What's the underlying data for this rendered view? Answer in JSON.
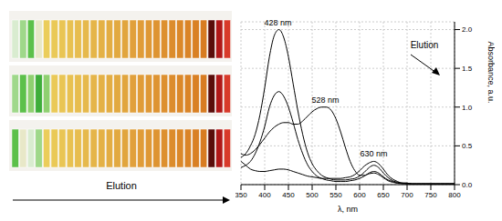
{
  "photo": {
    "label": "Elution"
  },
  "chart_data": {
    "type": "line",
    "x_label": "λ, nm",
    "y_label": "Absorbance, a.u.",
    "z_label": "Elution",
    "grid": true,
    "x": [
      350,
      360,
      370,
      380,
      390,
      400,
      410,
      420,
      430,
      440,
      450,
      460,
      470,
      480,
      490,
      500,
      510,
      520,
      530,
      540,
      550,
      560,
      570,
      580,
      590,
      600,
      610,
      620,
      630,
      640,
      650,
      660,
      670,
      680,
      690,
      700,
      710,
      720,
      730,
      740,
      750,
      760,
      770,
      780,
      790,
      800
    ],
    "series": [
      {
        "color": "#000000",
        "values": [
          0.35,
          0.4,
          0.5,
          0.65,
          0.9,
          1.25,
          1.65,
          1.92,
          2.0,
          1.9,
          1.65,
          1.3,
          0.95,
          0.65,
          0.42,
          0.27,
          0.18,
          0.12,
          0.09,
          0.07,
          0.06,
          0.06,
          0.06,
          0.07,
          0.08,
          0.11,
          0.16,
          0.22,
          0.25,
          0.22,
          0.15,
          0.09,
          0.05,
          0.03,
          0.02,
          0.02,
          0.01,
          0.01,
          0.01,
          0.01,
          0.01,
          0.01,
          0.01,
          0.01,
          0.01,
          0.01
        ]
      },
      {
        "color": "#000000",
        "values": [
          0.22,
          0.25,
          0.3,
          0.4,
          0.55,
          0.75,
          1.0,
          1.15,
          1.2,
          1.14,
          1.0,
          0.8,
          0.58,
          0.4,
          0.26,
          0.17,
          0.11,
          0.08,
          0.06,
          0.05,
          0.04,
          0.04,
          0.04,
          0.05,
          0.06,
          0.08,
          0.11,
          0.15,
          0.17,
          0.15,
          0.1,
          0.06,
          0.04,
          0.02,
          0.02,
          0.01,
          0.01,
          0.01,
          0.01,
          0.01,
          0.01,
          0.01,
          0.01,
          0.01,
          0.01,
          0.01
        ]
      },
      {
        "color": "#000000",
        "values": [
          0.4,
          0.38,
          0.4,
          0.45,
          0.52,
          0.6,
          0.68,
          0.74,
          0.78,
          0.8,
          0.8,
          0.78,
          0.78,
          0.82,
          0.88,
          0.94,
          0.98,
          1.0,
          1.0,
          0.96,
          0.85,
          0.68,
          0.48,
          0.3,
          0.18,
          0.12,
          0.12,
          0.14,
          0.15,
          0.13,
          0.09,
          0.05,
          0.03,
          0.02,
          0.01,
          0.01,
          0.01,
          0.01,
          0.01,
          0.01,
          0.01,
          0.01,
          0.01,
          0.01,
          0.01,
          0.01
        ]
      },
      {
        "color": "#000000",
        "values": [
          0.3,
          0.25,
          0.2,
          0.18,
          0.17,
          0.17,
          0.18,
          0.19,
          0.2,
          0.2,
          0.19,
          0.17,
          0.15,
          0.13,
          0.11,
          0.1,
          0.09,
          0.08,
          0.08,
          0.08,
          0.08,
          0.08,
          0.09,
          0.1,
          0.13,
          0.18,
          0.24,
          0.28,
          0.3,
          0.27,
          0.2,
          0.12,
          0.07,
          0.04,
          0.02,
          0.02,
          0.01,
          0.01,
          0.01,
          0.01,
          0.01,
          0.01,
          0.01,
          0.01,
          0.01,
          0.01
        ]
      }
    ],
    "xlim": [
      350,
      800
    ],
    "xticks": [
      350,
      400,
      450,
      500,
      550,
      600,
      650,
      700,
      750,
      800
    ],
    "ylim": [
      0,
      2.1
    ],
    "yticks": [
      {
        "value": 0,
        "label": "0.0"
      },
      {
        "value": 0.5,
        "label": "0.5"
      },
      {
        "value": 1,
        "label": "1.0"
      },
      {
        "value": 1.5,
        "label": "1.5"
      },
      {
        "value": 2,
        "label": "2.0"
      }
    ],
    "annotations": [
      {
        "text": "428 nm",
        "x": 428,
        "y": 2.0
      },
      {
        "text": "528 nm",
        "x": 528,
        "y": 1.0
      },
      {
        "text": "630 nm",
        "x": 630,
        "y": 0.3
      }
    ]
  }
}
